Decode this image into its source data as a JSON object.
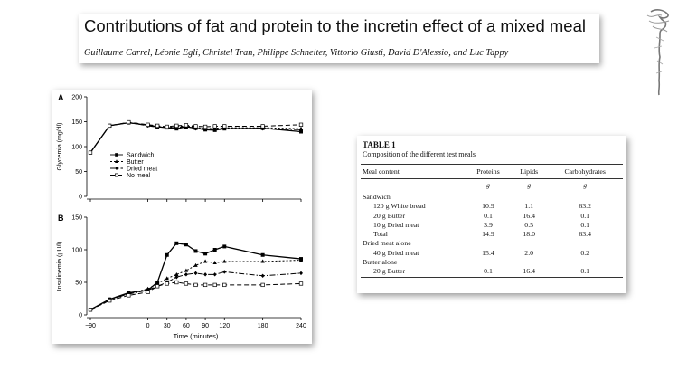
{
  "header": {
    "title": "Contributions of fat and protein to the incretin effect of a mixed meal",
    "authors": "Guillaume Carrel, Léonie Egli, Christel Tran, Philippe Schneiter, Vittorio Giusti, David D'Alessio, and Luc Tappy"
  },
  "figure": {
    "panel_a_letter": "A",
    "panel_b_letter": "B",
    "legend": [
      "Sandwich",
      "Butter",
      "Dried meat",
      "No meal"
    ]
  },
  "chart_data": [
    {
      "type": "line",
      "panel": "A",
      "ylabel": "Glycemia (mg/dl)",
      "xlabel": "",
      "ylim": [
        0,
        200
      ],
      "yticks": [
        0,
        50,
        100,
        150,
        200
      ],
      "xlim": [
        -90,
        240
      ],
      "legend_position": "lower-left",
      "series": [
        {
          "name": "Sandwich",
          "x": [
            -90,
            -60,
            -30,
            0,
            15,
            30,
            45,
            60,
            75,
            90,
            105,
            120,
            180,
            240
          ],
          "y": [
            88,
            142,
            148,
            143,
            140,
            138,
            136,
            140,
            137,
            134,
            133,
            136,
            137,
            130
          ]
        },
        {
          "name": "Butter",
          "x": [
            -90,
            -60,
            -30,
            0,
            15,
            30,
            45,
            60,
            75,
            90,
            105,
            120,
            180,
            240
          ],
          "y": [
            88,
            142,
            148,
            143,
            141,
            138,
            140,
            142,
            139,
            136,
            137,
            138,
            138,
            136
          ]
        },
        {
          "name": "Dried meat",
          "x": [
            -90,
            -60,
            -30,
            0,
            15,
            30,
            45,
            60,
            75,
            90,
            105,
            120,
            180,
            240
          ],
          "y": [
            88,
            142,
            148,
            142,
            139,
            139,
            138,
            141,
            136,
            136,
            135,
            137,
            136,
            134
          ]
        },
        {
          "name": "No meal",
          "x": [
            -90,
            -60,
            -30,
            0,
            15,
            30,
            45,
            60,
            75,
            90,
            105,
            120,
            180,
            240
          ],
          "y": [
            88,
            142,
            149,
            144,
            142,
            140,
            142,
            143,
            141,
            140,
            141,
            141,
            141,
            144
          ]
        }
      ]
    },
    {
      "type": "line",
      "panel": "B",
      "ylabel": "Insulinemia (µU/l)",
      "xlabel": "Time (minutes)",
      "ylim": [
        0,
        150
      ],
      "yticks": [
        0,
        50,
        100,
        150
      ],
      "xlim": [
        -90,
        240
      ],
      "xticks": [
        -90,
        0,
        30,
        60,
        90,
        120,
        180,
        240
      ],
      "series": [
        {
          "name": "Sandwich",
          "x": [
            -90,
            -60,
            -30,
            0,
            15,
            30,
            45,
            60,
            75,
            90,
            105,
            120,
            180,
            240
          ],
          "y": [
            8,
            24,
            34,
            38,
            50,
            92,
            110,
            108,
            98,
            94,
            100,
            105,
            92,
            86
          ]
        },
        {
          "name": "Butter",
          "x": [
            -90,
            -60,
            -30,
            0,
            15,
            30,
            45,
            60,
            75,
            90,
            105,
            120,
            180,
            240
          ],
          "y": [
            8,
            22,
            33,
            40,
            48,
            56,
            62,
            68,
            76,
            82,
            80,
            82,
            82,
            84
          ]
        },
        {
          "name": "Dried meat",
          "x": [
            -90,
            -60,
            -30,
            0,
            15,
            30,
            45,
            60,
            75,
            90,
            105,
            120,
            180,
            240
          ],
          "y": [
            8,
            24,
            32,
            38,
            44,
            50,
            58,
            62,
            64,
            62,
            62,
            66,
            60,
            64
          ]
        },
        {
          "name": "No meal",
          "x": [
            -90,
            -60,
            -30,
            0,
            15,
            30,
            45,
            60,
            75,
            90,
            105,
            120,
            180,
            240
          ],
          "y": [
            8,
            22,
            30,
            35,
            44,
            48,
            50,
            48,
            46,
            46,
            46,
            46,
            46,
            48
          ]
        }
      ]
    }
  ],
  "table": {
    "title": "TABLE 1",
    "caption": "Composition of the different test meals",
    "headers": [
      "Meal content",
      "Proteins",
      "Lipids",
      "Carbohydrates"
    ],
    "units": [
      "",
      "g",
      "g",
      "g"
    ],
    "rows": [
      {
        "label": "Sandwich",
        "indent": false,
        "values": [
          "",
          "",
          ""
        ]
      },
      {
        "label": "120 g White bread",
        "indent": true,
        "values": [
          "10.9",
          "1.1",
          "63.2"
        ]
      },
      {
        "label": "20 g Butter",
        "indent": true,
        "values": [
          "0.1",
          "16.4",
          "0.1"
        ]
      },
      {
        "label": "10 g Dried meat",
        "indent": true,
        "values": [
          "3.9",
          "0.5",
          "0.1"
        ]
      },
      {
        "label": "Total",
        "indent": true,
        "values": [
          "14.9",
          "18.0",
          "63.4"
        ]
      },
      {
        "label": "Dried meat alone",
        "indent": false,
        "values": [
          "",
          "",
          ""
        ]
      },
      {
        "label": "40 g Dried meat",
        "indent": true,
        "values": [
          "15.4",
          "2.0",
          "0.2"
        ]
      },
      {
        "label": "Butter alone",
        "indent": false,
        "values": [
          "",
          "",
          ""
        ]
      },
      {
        "label": "20 g Butter",
        "indent": true,
        "values": [
          "0.1",
          "16.4",
          "0.1"
        ]
      }
    ]
  }
}
